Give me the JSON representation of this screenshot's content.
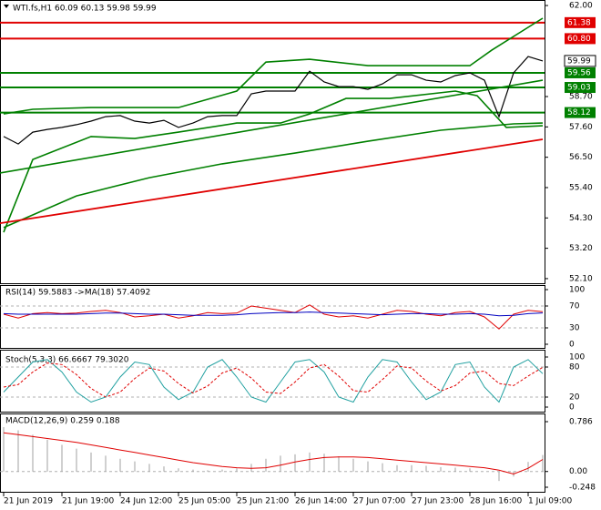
{
  "chart_data": [
    {
      "type": "line",
      "title": "WTI.fs,H1  60.09 60.13 59.98 59.99",
      "xlim": [
        -1,
        148.5
      ],
      "xticks": [
        {
          "value": 0,
          "label": "21 Jun 2019"
        },
        {
          "value": 16,
          "label": "21 Jun 19:00"
        },
        {
          "value": 32,
          "label": "24 Jun 12:00"
        },
        {
          "value": 48,
          "label": "25 Jun 05:00"
        },
        {
          "value": 64,
          "label": "25 Jun 21:00"
        },
        {
          "value": 80,
          "label": "26 Jun 14:00"
        },
        {
          "value": 96,
          "label": "27 Jun 07:00"
        },
        {
          "value": 112,
          "label": "27 Jun 23:00"
        },
        {
          "value": 128,
          "label": "28 Jun 16:00"
        },
        {
          "value": 144,
          "label": "1 Jul 09:00"
        }
      ],
      "ylim": [
        51.9,
        62.2
      ],
      "yticks": [
        {
          "value": 62,
          "label": "62.00"
        },
        {
          "value": 58.7,
          "label": "58.70"
        },
        {
          "value": 57.6,
          "label": "57.60"
        },
        {
          "value": 56.5,
          "label": "56.50"
        },
        {
          "value": 55.4,
          "label": "55.40"
        },
        {
          "value": 54.3,
          "label": "54.30"
        },
        {
          "value": 53.2,
          "label": "53.20"
        },
        {
          "value": 52.1,
          "label": "52.10"
        }
      ],
      "levels": [
        {
          "value": 61.38,
          "color": "#e00000"
        },
        {
          "value": 60.8,
          "label": "60.80",
          "color": "#e00000"
        },
        {
          "value": 59.56,
          "color": "#008000"
        },
        {
          "value": 59.03,
          "color": "#008000"
        },
        {
          "value": 58.12,
          "color": "#008000"
        }
      ],
      "last_price": 59.99,
      "series": [
        {
          "color": "#000000",
          "width": 1.2,
          "x": [
            0,
            4,
            8,
            12,
            16,
            20,
            24,
            28,
            32,
            36,
            40,
            44,
            48,
            52,
            56,
            60,
            64,
            68,
            72,
            76,
            80,
            84,
            88,
            92,
            96,
            100,
            104,
            108,
            112,
            116,
            120,
            124,
            128,
            132,
            136,
            140,
            144,
            148
          ],
          "values": [
            57.25,
            56.98,
            57.41,
            57.51,
            57.58,
            57.68,
            57.81,
            57.97,
            58.01,
            57.81,
            57.74,
            57.84,
            57.58,
            57.74,
            57.97,
            58.01,
            58.01,
            58.8,
            58.9,
            58.9,
            58.9,
            59.62,
            59.23,
            59.06,
            59.06,
            58.96,
            59.16,
            59.49,
            59.49,
            59.29,
            59.23,
            59.46,
            59.56,
            59.29,
            57.97,
            59.56,
            60.15,
            59.99
          ]
        },
        {
          "color": "#008000",
          "width": 1.6,
          "x": [
            0,
            8,
            24,
            36,
            48,
            64,
            72,
            84,
            100,
            116,
            128,
            134,
            144,
            148
          ],
          "values": [
            58.07,
            58.24,
            58.3,
            58.3,
            58.3,
            58.9,
            59.95,
            60.05,
            59.82,
            59.82,
            59.82,
            60.38,
            61.21,
            61.54
          ]
        },
        {
          "color": "#008000",
          "width": 1.6,
          "x": [
            0,
            8,
            24,
            36,
            48,
            64,
            76,
            84,
            94,
            106,
            124,
            130,
            138,
            148
          ],
          "values": [
            53.78,
            56.42,
            57.25,
            57.18,
            57.41,
            57.74,
            57.74,
            58.07,
            58.63,
            58.63,
            58.9,
            58.73,
            57.58,
            57.64
          ]
        },
        {
          "color": "#008000",
          "width": 1.6,
          "x": [
            0,
            20,
            40,
            60,
            80,
            100,
            120,
            140,
            148
          ],
          "values": [
            53.95,
            55.1,
            55.76,
            56.26,
            56.65,
            57.08,
            57.48,
            57.71,
            57.74
          ]
        },
        {
          "color": "#008000",
          "width": 1.6,
          "x": [
            -1,
            148
          ],
          "values": [
            55.93,
            59.29
          ]
        },
        {
          "color": "#e00000",
          "width": 1.8,
          "x": [
            -1,
            148
          ],
          "values": [
            54.11,
            57.15
          ]
        }
      ]
    },
    {
      "type": "line",
      "title": "RSI(14) 59.5883 ->MA(18) 57.4092",
      "xlim": [
        -1,
        148.5
      ],
      "ylim": [
        0,
        100
      ],
      "yticks": [
        0,
        30,
        70,
        100
      ],
      "series": [
        {
          "color": "#e00000",
          "width": 1,
          "x": [
            0,
            4,
            8,
            12,
            16,
            20,
            24,
            28,
            32,
            36,
            40,
            44,
            48,
            52,
            56,
            60,
            64,
            68,
            72,
            76,
            80,
            84,
            88,
            92,
            96,
            100,
            104,
            108,
            112,
            116,
            120,
            124,
            128,
            132,
            136,
            140,
            144,
            148
          ],
          "values": [
            55,
            48,
            56,
            58,
            56,
            57,
            60,
            62,
            58,
            50,
            52,
            55,
            48,
            52,
            58,
            56,
            57,
            70,
            66,
            62,
            58,
            72,
            55,
            50,
            52,
            48,
            55,
            62,
            60,
            55,
            52,
            58,
            60,
            50,
            28,
            55,
            62,
            59.59
          ]
        },
        {
          "color": "#0000c0",
          "width": 1,
          "x": [
            0,
            4,
            8,
            12,
            16,
            20,
            24,
            28,
            32,
            36,
            40,
            44,
            48,
            52,
            56,
            60,
            64,
            68,
            72,
            76,
            80,
            84,
            88,
            92,
            96,
            100,
            104,
            108,
            112,
            116,
            120,
            124,
            128,
            132,
            136,
            140,
            144,
            148
          ],
          "values": [
            56,
            55,
            55,
            55,
            55,
            55,
            56,
            57,
            57,
            56,
            55,
            55,
            54,
            53,
            53,
            53,
            54,
            56,
            57,
            58,
            58,
            59,
            58,
            57,
            56,
            55,
            54,
            55,
            56,
            56,
            55,
            55,
            56,
            55,
            52,
            53,
            56,
            57.41
          ]
        }
      ]
    },
    {
      "type": "line",
      "title": "Stoch(5,3,3) 66.6667 79.3020",
      "xlim": [
        -1,
        148.5
      ],
      "ylim": [
        0,
        100
      ],
      "yticks": [
        0,
        20,
        80,
        100
      ],
      "series": [
        {
          "color": "#20a0a0",
          "width": 1,
          "x": [
            0,
            4,
            8,
            12,
            16,
            20,
            24,
            28,
            32,
            36,
            40,
            44,
            48,
            52,
            56,
            60,
            64,
            68,
            72,
            76,
            80,
            84,
            88,
            92,
            96,
            100,
            104,
            108,
            112,
            116,
            120,
            124,
            128,
            132,
            136,
            140,
            144,
            148
          ],
          "values": [
            30,
            60,
            90,
            95,
            70,
            30,
            10,
            20,
            60,
            90,
            85,
            40,
            15,
            30,
            80,
            95,
            60,
            20,
            10,
            50,
            90,
            95,
            70,
            20,
            10,
            60,
            95,
            90,
            50,
            15,
            30,
            85,
            90,
            40,
            10,
            80,
            95,
            66.67
          ]
        },
        {
          "color": "#e00000",
          "width": 1,
          "dashed": true,
          "x": [
            0,
            4,
            8,
            12,
            16,
            20,
            24,
            28,
            32,
            36,
            40,
            44,
            48,
            52,
            56,
            60,
            64,
            68,
            72,
            76,
            80,
            84,
            88,
            92,
            96,
            100,
            104,
            108,
            112,
            116,
            120,
            124,
            128,
            132,
            136,
            140,
            144,
            148
          ],
          "values": [
            40,
            45,
            70,
            88,
            85,
            65,
            37,
            20,
            30,
            57,
            78,
            72,
            47,
            28,
            42,
            68,
            78,
            58,
            30,
            27,
            50,
            78,
            85,
            62,
            33,
            30,
            55,
            82,
            78,
            52,
            32,
            43,
            68,
            72,
            47,
            43,
            62,
            79.3
          ]
        }
      ]
    },
    {
      "type": "bar",
      "title": "MACD(12,26,9) 0.259 0.188",
      "xlim": [
        -1,
        148.5
      ],
      "ylim": [
        -0.248,
        0.786
      ],
      "yticks": [
        -0.248,
        {
          "value": 0,
          "label": "0.00"
        },
        0.786
      ],
      "color": "#a0a0a0",
      "x": [
        0,
        4,
        8,
        12,
        16,
        20,
        24,
        28,
        32,
        36,
        40,
        44,
        48,
        52,
        56,
        60,
        64,
        68,
        72,
        76,
        80,
        84,
        88,
        92,
        96,
        100,
        104,
        108,
        112,
        116,
        120,
        124,
        128,
        132,
        136,
        140,
        144,
        148
      ],
      "values": [
        0.7,
        0.65,
        0.58,
        0.5,
        0.42,
        0.36,
        0.3,
        0.25,
        0.2,
        0.16,
        0.12,
        0.08,
        0.05,
        0.03,
        0.02,
        0.03,
        0.05,
        0.12,
        0.2,
        0.25,
        0.27,
        0.3,
        0.28,
        0.24,
        0.2,
        0.16,
        0.13,
        0.1,
        0.1,
        0.09,
        0.07,
        0.06,
        0.05,
        0,
        -0.15,
        -0.08,
        0.15,
        0.26
      ],
      "signal": {
        "color": "#e00000",
        "values": [
          0.61,
          0.58,
          0.55,
          0.52,
          0.49,
          0.46,
          0.42,
          0.38,
          0.34,
          0.3,
          0.26,
          0.22,
          0.18,
          0.14,
          0.11,
          0.08,
          0.06,
          0.05,
          0.06,
          0.1,
          0.15,
          0.19,
          0.22,
          0.23,
          0.23,
          0.22,
          0.2,
          0.18,
          0.16,
          0.14,
          0.12,
          0.1,
          0.08,
          0.06,
          0.02,
          -0.04,
          0.05,
          0.19
        ]
      }
    }
  ]
}
